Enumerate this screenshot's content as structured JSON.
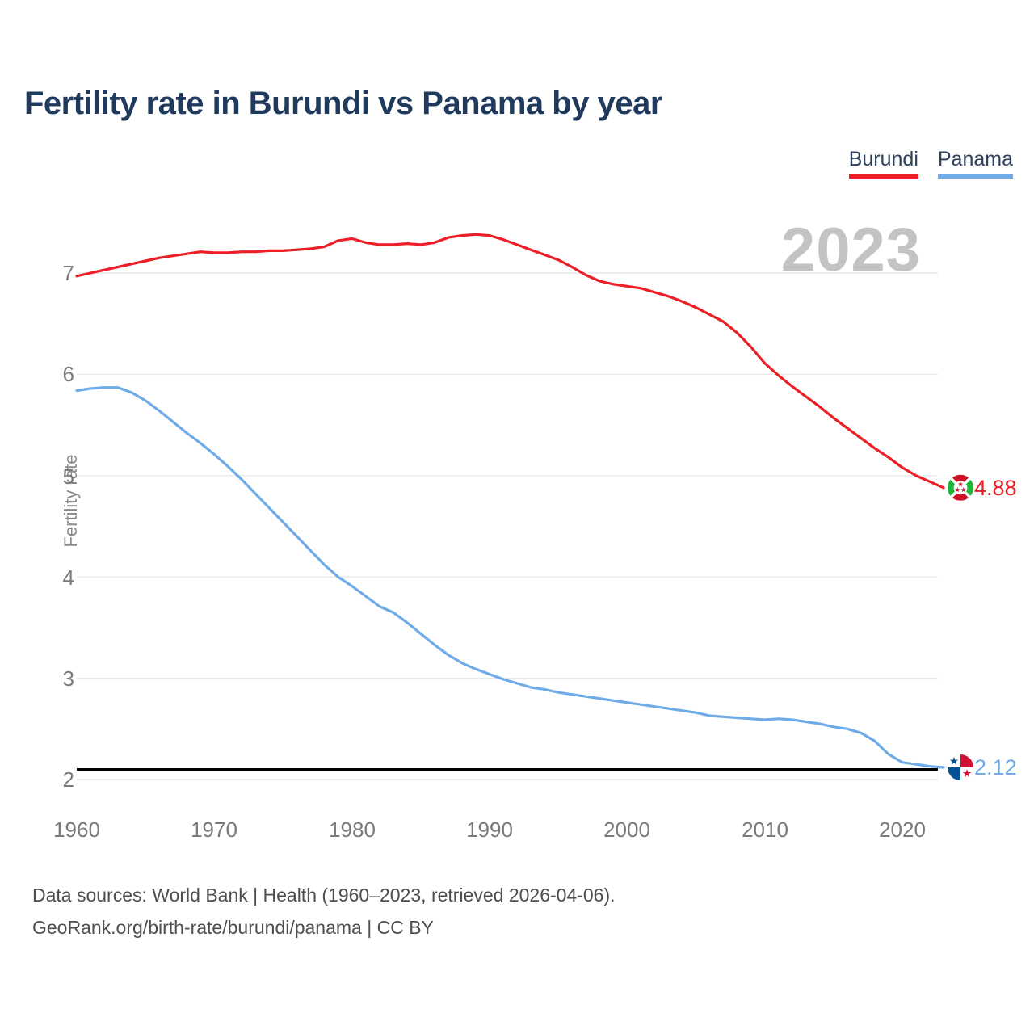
{
  "page": {
    "title": "Fertility rate in Burundi vs Panama by year",
    "watermark_year": "2023",
    "footer_line1": "Data sources: World Bank | Health (1960–2023, retrieved 2026-04-06).",
    "footer_line2": "GeoRank.org/birth-rate/burundi/panama | CC BY"
  },
  "legend": {
    "items": [
      {
        "label": "Burundi",
        "color": "#ec1e27"
      },
      {
        "label": "Panama",
        "color": "#6fabe7"
      }
    ]
  },
  "chart_data": {
    "type": "line",
    "title": "Fertility rate in Burundi vs Panama by year",
    "xlabel": "",
    "ylabel": "Fertility rate",
    "x_range": [
      1960,
      2023
    ],
    "ylim": [
      2,
      7.45
    ],
    "grid": true,
    "legend_position": "top-right",
    "xticks": [
      "1960",
      "1970",
      "1980",
      "1990",
      "2000",
      "2010",
      "2020"
    ],
    "yticks": [
      "7",
      "6",
      "5",
      "4",
      "3",
      "2"
    ],
    "ytick_values": [
      7,
      6,
      5,
      4,
      3,
      2
    ],
    "xtick_values": [
      1960,
      1970,
      1980,
      1990,
      2000,
      2010,
      2020
    ],
    "x_years_start": 1960,
    "series": [
      {
        "name": "Burundi",
        "color": "#ec1e27",
        "end_label": "4.88",
        "flag": "burundi-flag",
        "values": [
          6.97,
          7.0,
          7.03,
          7.06,
          7.09,
          7.12,
          7.15,
          7.17,
          7.19,
          7.21,
          7.2,
          7.2,
          7.21,
          7.21,
          7.22,
          7.22,
          7.23,
          7.24,
          7.26,
          7.32,
          7.34,
          7.3,
          7.28,
          7.28,
          7.29,
          7.28,
          7.3,
          7.35,
          7.37,
          7.38,
          7.37,
          7.33,
          7.28,
          7.23,
          7.18,
          7.13,
          7.06,
          6.98,
          6.92,
          6.89,
          6.87,
          6.85,
          6.81,
          6.77,
          6.72,
          6.66,
          6.59,
          6.52,
          6.41,
          6.27,
          6.11,
          5.99,
          5.88,
          5.78,
          5.68,
          5.57,
          5.47,
          5.37,
          5.27,
          5.18,
          5.08,
          5.0,
          4.94,
          4.88
        ]
      },
      {
        "name": "Panama",
        "color": "#6fabe7",
        "end_label": "2.12",
        "flag": "panama-flag",
        "values": [
          5.84,
          5.86,
          5.87,
          5.87,
          5.82,
          5.74,
          5.64,
          5.53,
          5.42,
          5.32,
          5.21,
          5.09,
          4.96,
          4.82,
          4.68,
          4.54,
          4.4,
          4.26,
          4.12,
          4.0,
          3.91,
          3.81,
          3.71,
          3.65,
          3.55,
          3.44,
          3.33,
          3.23,
          3.15,
          3.09,
          3.04,
          2.99,
          2.95,
          2.91,
          2.89,
          2.86,
          2.84,
          2.82,
          2.8,
          2.78,
          2.76,
          2.74,
          2.72,
          2.7,
          2.68,
          2.66,
          2.63,
          2.62,
          2.61,
          2.6,
          2.59,
          2.6,
          2.59,
          2.57,
          2.55,
          2.52,
          2.5,
          2.46,
          2.38,
          2.25,
          2.17,
          2.15,
          2.13,
          2.12
        ]
      }
    ],
    "reference_line": {
      "value": 2.1,
      "color": "#000000"
    },
    "colors": {
      "grid": "#e9e9e9",
      "axis_text": "#7a7a7a",
      "title_text": "#1f3a5c",
      "watermark": "#c3c3c3"
    }
  }
}
